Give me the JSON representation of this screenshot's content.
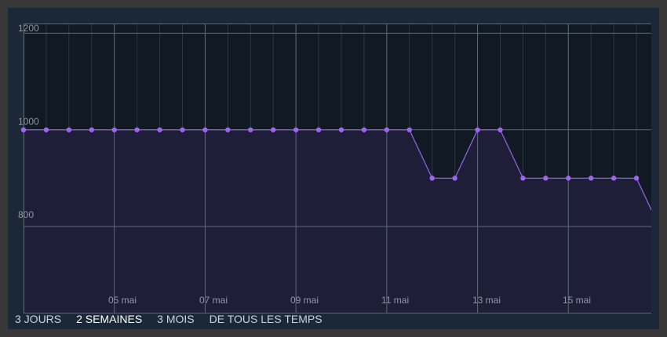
{
  "chart_data": {
    "type": "area",
    "ylim": [
      620,
      1220
    ],
    "y_ticks": [
      1200,
      1000,
      800
    ],
    "x_ticks": [
      "05 mai",
      "07 mai",
      "09 mai",
      "11 mai",
      "13 mai",
      "15 mai"
    ],
    "x_start": "03 mai",
    "x_end": "16 mai",
    "points": [
      {
        "x": "03 mai 00:00",
        "y": 1000
      },
      {
        "x": "03 mai 12:00",
        "y": 1000
      },
      {
        "x": "04 mai 00:00",
        "y": 1000
      },
      {
        "x": "04 mai 12:00",
        "y": 1000
      },
      {
        "x": "05 mai 00:00",
        "y": 1000
      },
      {
        "x": "05 mai 12:00",
        "y": 1000
      },
      {
        "x": "06 mai 00:00",
        "y": 1000
      },
      {
        "x": "06 mai 12:00",
        "y": 1000
      },
      {
        "x": "07 mai 00:00",
        "y": 1000
      },
      {
        "x": "07 mai 12:00",
        "y": 1000
      },
      {
        "x": "08 mai 00:00",
        "y": 1000
      },
      {
        "x": "08 mai 12:00",
        "y": 1000
      },
      {
        "x": "09 mai 00:00",
        "y": 1000
      },
      {
        "x": "09 mai 12:00",
        "y": 1000
      },
      {
        "x": "10 mai 00:00",
        "y": 1000
      },
      {
        "x": "10 mai 12:00",
        "y": 1000
      },
      {
        "x": "11 mai 00:00",
        "y": 1000
      },
      {
        "x": "11 mai 12:00",
        "y": 1000
      },
      {
        "x": "12 mai 00:00",
        "y": 900
      },
      {
        "x": "12 mai 12:00",
        "y": 900
      },
      {
        "x": "13 mai 00:00",
        "y": 1000
      },
      {
        "x": "13 mai 12:00",
        "y": 1000
      },
      {
        "x": "14 mai 00:00",
        "y": 900
      },
      {
        "x": "14 mai 12:00",
        "y": 900
      },
      {
        "x": "15 mai 00:00",
        "y": 900
      },
      {
        "x": "15 mai 12:00",
        "y": 900
      },
      {
        "x": "16 mai 00:00",
        "y": 900
      },
      {
        "x": "16 mai 12:00",
        "y": 900
      },
      {
        "x": "17 mai 00:00",
        "y": 800
      }
    ],
    "colors": {
      "line": "#a064f0",
      "fill": "#1e1e38",
      "plot_bg": "#111a23",
      "grid_major": "#5c6a78",
      "grid_minor": "#2a3644"
    }
  },
  "range_selector": {
    "options": [
      {
        "label": "3 JOURS",
        "active": false
      },
      {
        "label": "2 SEMAINES",
        "active": true
      },
      {
        "label": "3 MOIS",
        "active": false
      },
      {
        "label": "DE TOUS LES TEMPS",
        "active": false
      }
    ]
  }
}
